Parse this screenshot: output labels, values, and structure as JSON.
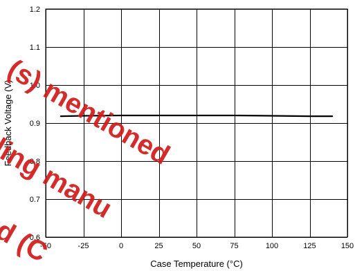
{
  "chart_data": {
    "type": "line",
    "title": "",
    "xlabel": "Case Temperature (°C)",
    "ylabel": "Feedback Voltage (V)",
    "xlim": [
      -50,
      150
    ],
    "ylim": [
      0.6,
      1.2
    ],
    "x_ticks": [
      -50,
      -25,
      0,
      25,
      50,
      75,
      100,
      125,
      150
    ],
    "y_ticks": [
      0.6,
      0.7,
      0.8,
      0.9,
      1.0,
      1.1,
      1.2
    ],
    "x_tick_labels": [
      "-50",
      "-25",
      "0",
      "25",
      "50",
      "75",
      "100",
      "125",
      "150"
    ],
    "y_tick_labels": [
      "0.6",
      "0.7",
      "0.8",
      "0.9",
      "1.0",
      "1.1",
      "1.2"
    ],
    "grid": true,
    "legend": "none",
    "series": [
      {
        "x": [
          -40,
          -25,
          0,
          25,
          50,
          75,
          100,
          125,
          140
        ],
        "y": [
          0.918,
          0.919,
          0.92,
          0.92,
          0.92,
          0.92,
          0.919,
          0.918,
          0.918
        ],
        "color": "#000000"
      }
    ]
  },
  "watermark": {
    "lines": [
      "(s) mentioned",
      "ling manu",
      "ed (C"
    ],
    "color": "#d11a1a"
  }
}
